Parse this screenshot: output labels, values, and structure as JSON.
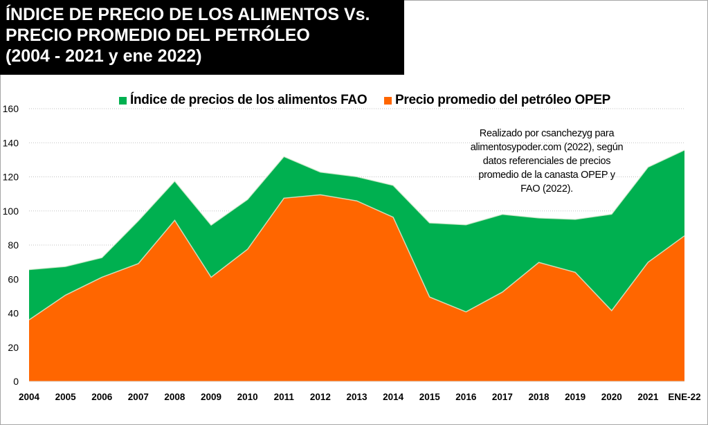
{
  "title_lines": [
    "ÍNDICE DE PRECIO DE LOS ALIMENTOS Vs.",
    "PRECIO PROMEDIO DEL PETRÓLEO",
    "(2004 - 2021 y ene 2022)"
  ],
  "note_lines": [
    "Realizado por csanchezyg para",
    "alimentosypoder.com (2022), según",
    "datos referenciales de precios",
    "promedio de la canasta OPEP y",
    "FAO (2022)."
  ],
  "chart_data": {
    "type": "area",
    "title": "ÍNDICE DE PRECIO DE LOS ALIMENTOS Vs. PRECIO PROMEDIO DEL PETRÓLEO (2004 - 2021 y ene 2022)",
    "categories": [
      "2004",
      "2005",
      "2006",
      "2007",
      "2008",
      "2009",
      "2010",
      "2011",
      "2012",
      "2013",
      "2014",
      "2015",
      "2016",
      "2017",
      "2018",
      "2019",
      "2020",
      "2021",
      "ENE-22"
    ],
    "series": [
      {
        "name": "Índice de precios de los alimentos FAO",
        "color": "#00b050",
        "values": [
          65.6,
          67.4,
          72.6,
          94.2,
          117.5,
          91.7,
          106.7,
          131.9,
          122.8,
          120.1,
          115.0,
          93.0,
          91.9,
          98.0,
          95.9,
          95.1,
          98.1,
          125.7,
          135.7
        ]
      },
      {
        "name": "Precio promedio del petróleo OPEP",
        "color": "#ff6600",
        "values": [
          36.1,
          50.6,
          61.1,
          69.1,
          94.5,
          61.1,
          77.5,
          107.5,
          109.5,
          105.9,
          96.3,
          49.5,
          40.8,
          52.4,
          69.8,
          64.0,
          41.5,
          69.9,
          85.4
        ]
      }
    ],
    "ylim": [
      0,
      160
    ],
    "yticks": [
      "0",
      "20",
      "40",
      "60",
      "80",
      "100",
      "120",
      "140",
      "160"
    ],
    "grid": true,
    "legend_position": "top"
  }
}
